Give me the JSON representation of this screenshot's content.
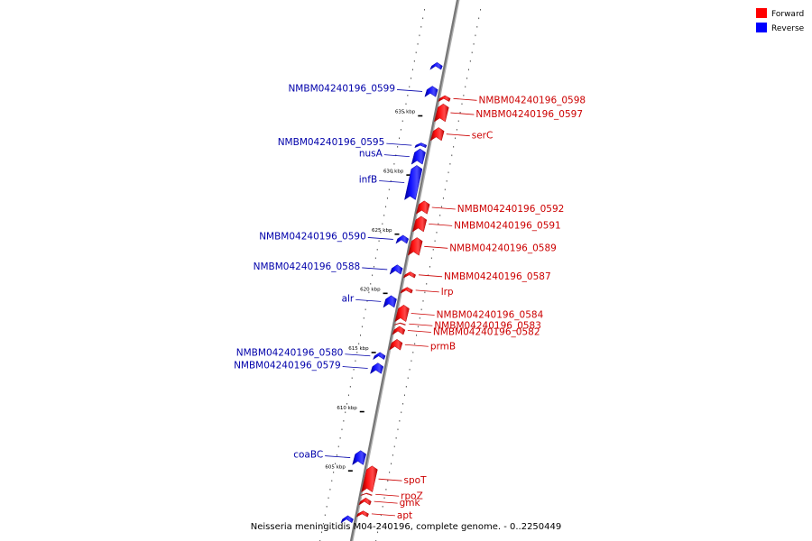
{
  "caption": "Neisseria meningitidis M04-240196, complete genome. - 0..2250449",
  "legend": {
    "placement": "top-right",
    "items": [
      {
        "label": "Forward",
        "color": "#ff0000"
      },
      {
        "label": "Reverse",
        "color": "#0000ff"
      }
    ]
  },
  "ticks": [
    {
      "kbp": 605,
      "label": "605 kbp"
    },
    {
      "kbp": 610,
      "label": "610 kbp"
    },
    {
      "kbp": 615,
      "label": "615 kbp"
    },
    {
      "kbp": 620,
      "label": "620 kbp"
    },
    {
      "kbp": 625,
      "label": "625 kbp"
    },
    {
      "kbp": 630,
      "label": "630 kbp"
    },
    {
      "kbp": 635,
      "label": "635 kbp"
    }
  ],
  "genes": [
    {
      "name": "apt",
      "strand": "forward",
      "start_kbp": 600.9,
      "end_kbp": 601.4
    },
    {
      "name": "gmk",
      "strand": "forward",
      "start_kbp": 601.9,
      "end_kbp": 602.5
    },
    {
      "name": "rpoZ",
      "strand": "forward",
      "start_kbp": 602.7,
      "end_kbp": 602.9
    },
    {
      "name": "spoT",
      "strand": "forward",
      "start_kbp": 603.0,
      "end_kbp": 605.2
    },
    {
      "name": "",
      "strand": "reverse",
      "start_kbp": 600.4,
      "end_kbp": 601.0
    },
    {
      "name": "coaBC",
      "strand": "reverse",
      "start_kbp": 605.3,
      "end_kbp": 606.5
    },
    {
      "name": "NMBM04240196_0579",
      "strand": "reverse",
      "start_kbp": 613.0,
      "end_kbp": 613.9
    },
    {
      "name": "NMBM04240196_0580",
      "strand": "reverse",
      "start_kbp": 614.2,
      "end_kbp": 614.8
    },
    {
      "name": "prmB",
      "strand": "forward",
      "start_kbp": 615.0,
      "end_kbp": 615.9
    },
    {
      "name": "NMBM04240196_0582",
      "strand": "forward",
      "start_kbp": 616.3,
      "end_kbp": 617.0
    },
    {
      "name": "NMBM04240196_0583",
      "strand": "forward",
      "start_kbp": 617.1,
      "end_kbp": 617.3
    },
    {
      "name": "NMBM04240196_0584",
      "strand": "forward",
      "start_kbp": 617.4,
      "end_kbp": 618.8
    },
    {
      "name": "alr",
      "strand": "reverse",
      "start_kbp": 618.6,
      "end_kbp": 619.6
    },
    {
      "name": "lrp",
      "strand": "forward",
      "start_kbp": 619.8,
      "end_kbp": 620.3
    },
    {
      "name": "NMBM04240196_0587",
      "strand": "forward",
      "start_kbp": 621.1,
      "end_kbp": 621.6
    },
    {
      "name": "NMBM04240196_0588",
      "strand": "reverse",
      "start_kbp": 621.4,
      "end_kbp": 622.2
    },
    {
      "name": "NMBM04240196_0589",
      "strand": "forward",
      "start_kbp": 623.0,
      "end_kbp": 624.5
    },
    {
      "name": "NMBM04240196_0590",
      "strand": "reverse",
      "start_kbp": 624.0,
      "end_kbp": 624.7
    },
    {
      "name": "NMBM04240196_0591",
      "strand": "forward",
      "start_kbp": 625.0,
      "end_kbp": 626.3
    },
    {
      "name": "NMBM04240196_0592",
      "strand": "forward",
      "start_kbp": 626.5,
      "end_kbp": 627.6
    },
    {
      "name": "infB",
      "strand": "reverse",
      "start_kbp": 627.7,
      "end_kbp": 630.6
    },
    {
      "name": "nusA",
      "strand": "reverse",
      "start_kbp": 630.7,
      "end_kbp": 632.0
    },
    {
      "name": "NMBM04240196_0595",
      "strand": "reverse",
      "start_kbp": 632.1,
      "end_kbp": 632.5
    },
    {
      "name": "serC",
      "strand": "forward",
      "start_kbp": 632.7,
      "end_kbp": 633.8
    },
    {
      "name": "NMBM04240196_0597",
      "strand": "forward",
      "start_kbp": 634.3,
      "end_kbp": 635.8
    },
    {
      "name": "NMBM04240196_0598",
      "strand": "forward",
      "start_kbp": 636.0,
      "end_kbp": 636.5
    },
    {
      "name": "NMBM04240196_0599",
      "strand": "reverse",
      "start_kbp": 636.4,
      "end_kbp": 637.3
    },
    {
      "name": "",
      "strand": "reverse",
      "start_kbp": 638.7,
      "end_kbp": 639.3
    }
  ]
}
